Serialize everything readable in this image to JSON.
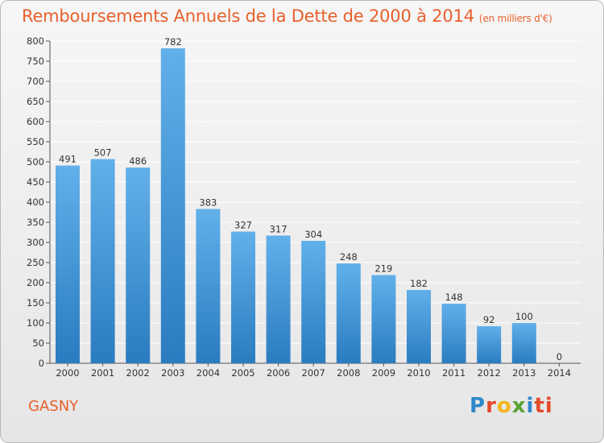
{
  "title": "Remboursements Annuels de la Dette de 2000 à 2014",
  "unit": "(en milliers d'€)",
  "city": "GASNY",
  "logo": [
    "P",
    "r",
    "o",
    "x",
    "i",
    "ti"
  ],
  "colors": {
    "title": "#e8602c",
    "bar_top": "#62b0ea",
    "bar_bottom": "#2a7cc0",
    "grid": "#ffffff"
  },
  "chart_data": {
    "type": "bar",
    "categories": [
      "2000",
      "2001",
      "2002",
      "2003",
      "2004",
      "2005",
      "2006",
      "2007",
      "2008",
      "2009",
      "2010",
      "2011",
      "2012",
      "2013",
      "2014"
    ],
    "values": [
      491,
      507,
      486,
      782,
      383,
      327,
      317,
      304,
      248,
      219,
      182,
      148,
      92,
      100,
      0
    ],
    "ylim": [
      0,
      800
    ],
    "yticks": [
      0,
      50,
      100,
      150,
      200,
      250,
      300,
      350,
      400,
      450,
      500,
      550,
      600,
      650,
      700,
      750,
      800
    ],
    "grid": true,
    "legend": "none"
  }
}
